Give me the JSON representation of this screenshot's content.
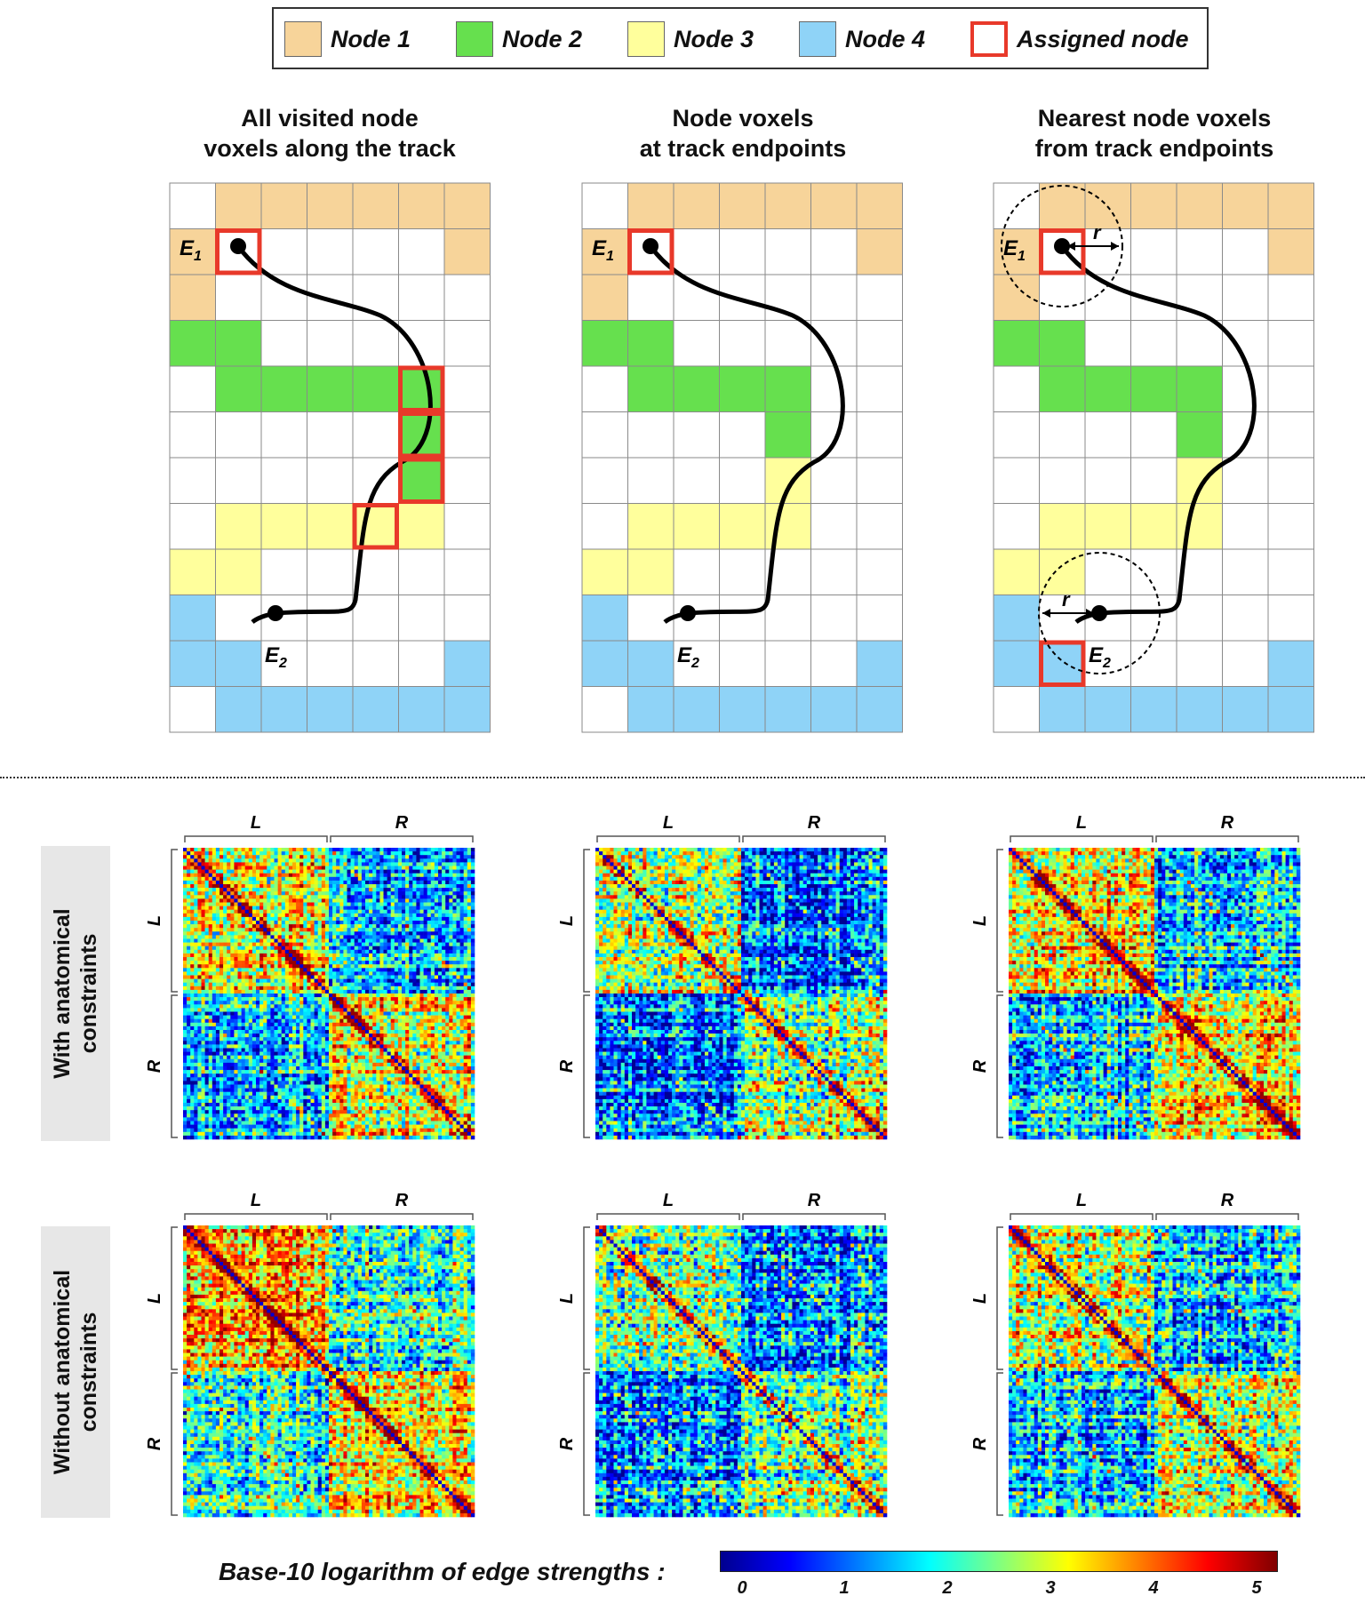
{
  "legend": {
    "items": [
      {
        "label": "Node 1",
        "color": "#f7d49a"
      },
      {
        "label": "Node 2",
        "color": "#66e04e"
      },
      {
        "label": "Node 3",
        "color": "#ffff9c"
      },
      {
        "label": "Node 4",
        "color": "#8fd3f7"
      },
      {
        "label": "Assigned node",
        "color": "#e8392a"
      }
    ]
  },
  "panels": [
    {
      "title_line1": "All visited node",
      "title_line2": "voxels along the track"
    },
    {
      "title_line1": "Node voxels",
      "title_line2": "at track endpoints"
    },
    {
      "title_line1": "Nearest node voxels",
      "title_line2": "from track endpoints"
    }
  ],
  "grid_text": {
    "endpoint1": "E",
    "endpoint1_sub": "1",
    "endpoint2": "E",
    "endpoint2_sub": "2",
    "radius": "r"
  },
  "matrix_axis": {
    "left": "L",
    "right": "R"
  },
  "row_labels": [
    {
      "line1": "With anatomical",
      "line2": "constraints"
    },
    {
      "line1": "Without anatomical",
      "line2": "constraints"
    }
  ],
  "colorbar": {
    "label": "Base-10 logarithm of edge strengths :",
    "ticks": [
      "0",
      "1",
      "2",
      "3",
      "4",
      "5"
    ],
    "range": [
      0,
      5
    ]
  }
}
